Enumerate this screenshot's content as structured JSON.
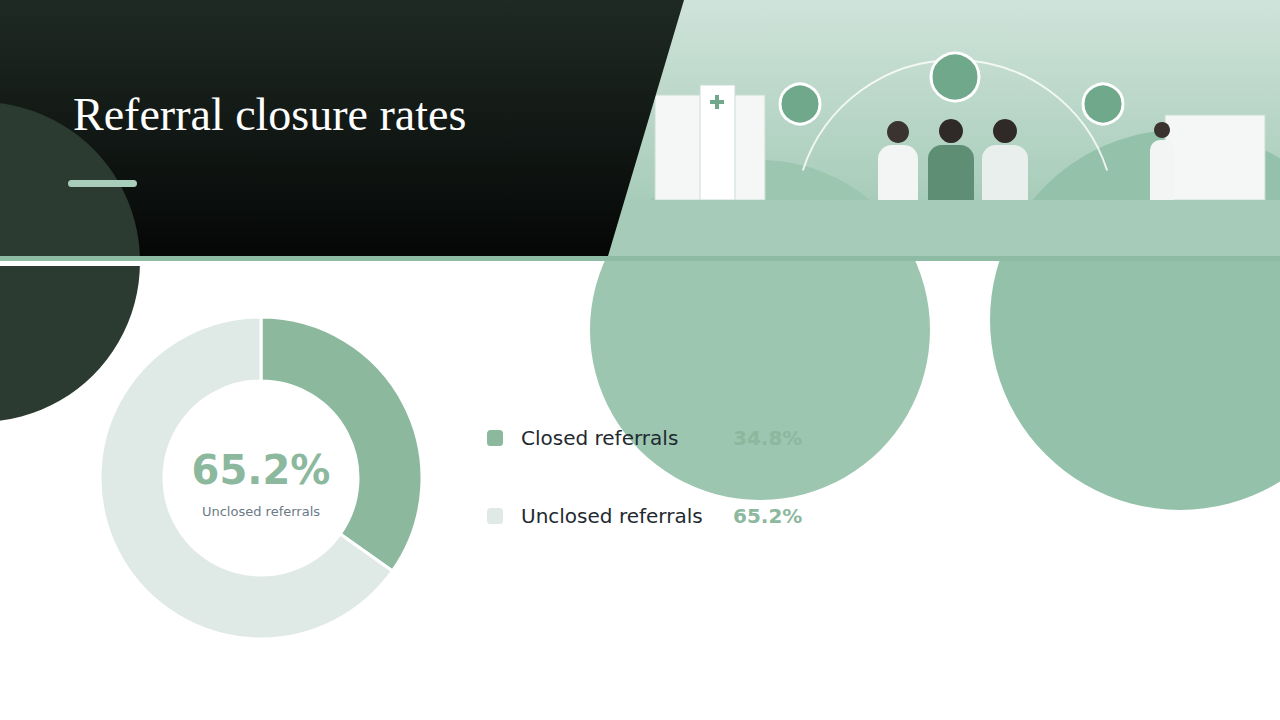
{
  "chart_data": {
    "type": "pie",
    "title": "Referral closure rates",
    "categories": [
      "Closed referrals",
      "Unclosed referrals"
    ],
    "values": [
      34.8,
      65.2
    ],
    "value_labels": [
      "34.8%",
      "65.2%"
    ],
    "colors": [
      "#8cb89e",
      "#dfe9e5"
    ],
    "legend": "right",
    "annotations": [
      {
        "value": 65.2,
        "label": "65.2%"
      },
      {
        "text": "Unclosed referrals"
      }
    ]
  }
}
